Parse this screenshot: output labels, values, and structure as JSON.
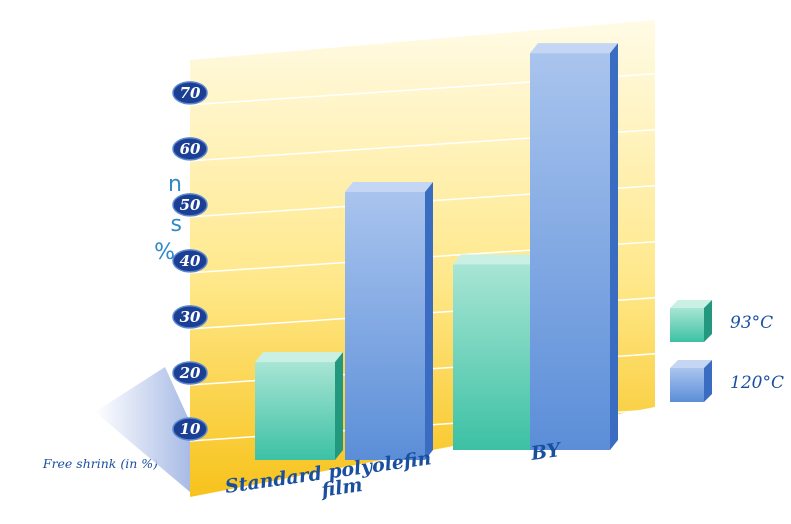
{
  "side_text": [
    "n",
    "s",
    "%."
  ],
  "chart_data": {
    "type": "bar",
    "categories": [
      "Standard polyolefin film",
      "BY"
    ],
    "category_lines": [
      [
        "Standard polyolefin",
        "film"
      ],
      [
        "BY"
      ]
    ],
    "ylabel": "Free shrink (in %)",
    "yticks": [
      10,
      20,
      30,
      40,
      50,
      60,
      70
    ],
    "ylim": [
      0,
      78
    ],
    "series": [
      {
        "name": "93°C",
        "values": [
          19,
          36
        ],
        "color": "#3cc1a4"
      },
      {
        "name": "120°C",
        "values": [
          52,
          77
        ],
        "color": "#5b8ed8"
      }
    ],
    "legend_position": "right",
    "grid": true
  }
}
